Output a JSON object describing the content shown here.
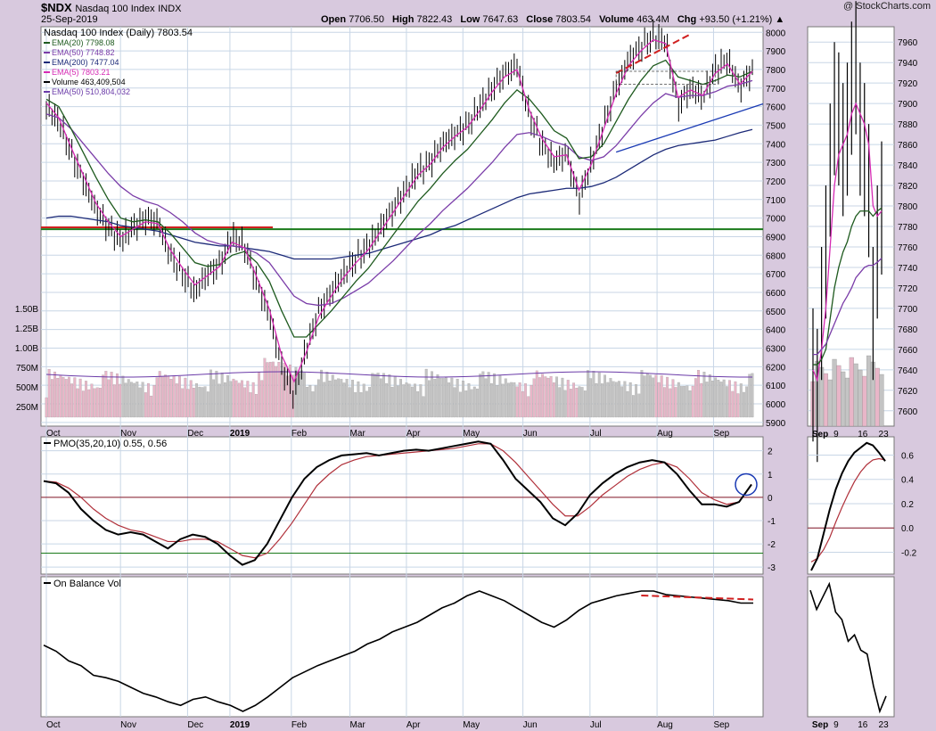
{
  "header": {
    "symbol": "$NDX",
    "name": "Nasdaq 100 Index",
    "exchange": "INDX",
    "date": "25-Sep-2019",
    "open_label": "Open",
    "open": "7706.50",
    "high_label": "High",
    "high": "7822.43",
    "low_label": "Low",
    "low": "7647.63",
    "close_label": "Close",
    "close": "7803.54",
    "volume_label": "Volume",
    "volume": "463.4M",
    "chg_label": "Chg",
    "chg": "+93.50 (+1.21%)",
    "watermark": "@ StockCharts.com"
  },
  "colors": {
    "background": "#d8c9de",
    "plot": "#ffffff",
    "grid": "#c8d6e6",
    "price": "#000000",
    "ema20": "#1e5a1e",
    "ema50": "#7a3ca8",
    "ema200": "#1c2a78",
    "ema5": "#d62ab4",
    "volume_bar": "#c4c4c4",
    "volume_bar_alt": "#e8b6c8",
    "volume_ema": "#6a3aa8",
    "support_red": "#d02020",
    "support_green": "#1a7a1a",
    "trend_blue": "#1a3ab4",
    "pmo_signal": "#b0303a"
  },
  "chart_data": [
    {
      "type": "line",
      "title": "Nasdaq 100 Index (Daily) 7803.54",
      "legend_placement": "top-left",
      "legend": [
        {
          "label": "EMA(20) 7798.08",
          "color_key": "ema20"
        },
        {
          "label": "EMA(50) 7748.82",
          "color_key": "ema50"
        },
        {
          "label": "EMA(200) 7477.04",
          "color_key": "ema200"
        },
        {
          "label": "EMA(5) 7803.21",
          "color_key": "ema5"
        },
        {
          "label": "Volume 463,409,504",
          "color_key": "price"
        },
        {
          "label": "EMA(50) 510,804,032",
          "color_key": "volume_ema"
        }
      ],
      "x_ticks": [
        "Oct",
        "Nov",
        "Dec",
        "2019",
        "Feb",
        "Mar",
        "Apr",
        "May",
        "Jun",
        "Jul",
        "Aug",
        "Sep"
      ],
      "y_ticks": [
        5900,
        6000,
        6100,
        6200,
        6300,
        6400,
        6500,
        6600,
        6700,
        6800,
        6900,
        7000,
        7100,
        7200,
        7300,
        7400,
        7500,
        7600,
        7700,
        7800,
        7900,
        8000
      ],
      "y_range": [
        5880,
        8030
      ],
      "volume_ticks": [
        "250M",
        "500M",
        "750M",
        "1.00B",
        "1.25B",
        "1.50B"
      ],
      "grid": true,
      "series": [
        {
          "name": "Close",
          "color_key": "price",
          "values": [
            7600,
            7520,
            7350,
            7200,
            7050,
            6950,
            6880,
            6950,
            7000,
            6980,
            6800,
            6700,
            6600,
            6700,
            6750,
            6900,
            6850,
            6650,
            6480,
            6200,
            6050,
            6300,
            6500,
            6600,
            6700,
            6780,
            6850,
            6950,
            7050,
            7150,
            7250,
            7300,
            7400,
            7450,
            7500,
            7600,
            7700,
            7780,
            7820,
            7550,
            7400,
            7300,
            7350,
            7100,
            7300,
            7500,
            7700,
            7850,
            7920,
            7980,
            7950,
            7600,
            7700,
            7650,
            7800,
            7850,
            7700,
            7800
          ]
        },
        {
          "name": "EMA(5)",
          "color_key": "ema5",
          "values": [
            7620,
            7540,
            7380,
            7230,
            7080,
            6980,
            6900,
            6940,
            6980,
            6970,
            6830,
            6730,
            6640,
            6690,
            6740,
            6870,
            6840,
            6680,
            6510,
            6260,
            6120,
            6280,
            6470,
            6580,
            6680,
            6760,
            6830,
            6930,
            7030,
            7130,
            7230,
            7290,
            7380,
            7440,
            7490,
            7580,
            7680,
            7760,
            7800,
            7580,
            7430,
            7330,
            7340,
            7150,
            7290,
            7480,
            7670,
            7820,
            7900,
            7960,
            7940,
            7650,
            7690,
            7660,
            7780,
            7830,
            7720,
            7790
          ]
        },
        {
          "name": "EMA(20)",
          "color_key": "ema20",
          "values": [
            7640,
            7600,
            7480,
            7350,
            7220,
            7100,
            7000,
            6980,
            6990,
            6980,
            6920,
            6840,
            6760,
            6740,
            6750,
            6800,
            6820,
            6760,
            6660,
            6500,
            6360,
            6360,
            6430,
            6500,
            6580,
            6660,
            6730,
            6820,
            6910,
            7000,
            7090,
            7160,
            7240,
            7310,
            7370,
            7450,
            7530,
            7620,
            7690,
            7640,
            7560,
            7470,
            7430,
            7320,
            7330,
            7400,
            7520,
            7640,
            7740,
            7820,
            7850,
            7760,
            7740,
            7720,
            7740,
            7770,
            7760,
            7790
          ]
        },
        {
          "name": "EMA(50)",
          "color_key": "ema50",
          "values": [
            7560,
            7540,
            7480,
            7400,
            7320,
            7240,
            7170,
            7120,
            7090,
            7070,
            7030,
            6980,
            6920,
            6880,
            6860,
            6850,
            6840,
            6810,
            6760,
            6670,
            6580,
            6540,
            6530,
            6540,
            6570,
            6610,
            6650,
            6710,
            6770,
            6840,
            6910,
            6970,
            7040,
            7100,
            7160,
            7230,
            7300,
            7380,
            7450,
            7460,
            7440,
            7410,
            7390,
            7330,
            7310,
            7330,
            7390,
            7470,
            7550,
            7620,
            7670,
            7650,
            7660,
            7660,
            7680,
            7710,
            7720,
            7740
          ]
        },
        {
          "name": "EMA(200)",
          "color_key": "ema200",
          "values": [
            7000,
            7010,
            7010,
            7000,
            6990,
            6980,
            6960,
            6950,
            6940,
            6930,
            6910,
            6890,
            6870,
            6860,
            6850,
            6850,
            6840,
            6830,
            6820,
            6800,
            6780,
            6780,
            6780,
            6780,
            6790,
            6800,
            6810,
            6830,
            6850,
            6870,
            6890,
            6910,
            6940,
            6960,
            6990,
            7020,
            7050,
            7080,
            7110,
            7130,
            7140,
            7150,
            7160,
            7160,
            7170,
            7190,
            7220,
            7260,
            7300,
            7340,
            7370,
            7390,
            7400,
            7410,
            7420,
            7440,
            7460,
            7477
          ]
        }
      ]
    },
    {
      "type": "bar",
      "title": "",
      "y_ticks": [
        7600,
        7620,
        7640,
        7660,
        7680,
        7700,
        7720,
        7740,
        7760,
        7780,
        7800,
        7820,
        7840,
        7860,
        7880,
        7900,
        7920,
        7940,
        7960
      ],
      "y_range": [
        7585,
        7975
      ],
      "x_ticks": [
        "Sep",
        "9",
        "16",
        "23"
      ],
      "series": [
        {
          "name": "Close",
          "color_key": "price",
          "values": [
            7640,
            7620,
            7700,
            7760,
            7840,
            7900,
            7890,
            7860,
            7880,
            7920,
            7940,
            7880,
            7860,
            7820,
            7700,
            7760,
            7803
          ]
        },
        {
          "name": "EMA(5)",
          "color_key": "ema5",
          "values": [
            7640,
            7630,
            7660,
            7700,
            7760,
            7820,
            7850,
            7860,
            7870,
            7890,
            7900,
            7890,
            7880,
            7860,
            7800,
            7790,
            7795
          ]
        },
        {
          "name": "EMA(20)",
          "color_key": "ema20",
          "values": [
            7645,
            7645,
            7650,
            7660,
            7690,
            7720,
            7740,
            7755,
            7765,
            7780,
            7790,
            7795,
            7795,
            7795,
            7790,
            7795,
            7798
          ]
        },
        {
          "name": "EMA(50)",
          "color_key": "ema50",
          "values": [
            7655,
            7655,
            7660,
            7665,
            7675,
            7685,
            7695,
            7705,
            7712,
            7720,
            7730,
            7735,
            7740,
            7742,
            7742,
            7745,
            7749
          ]
        }
      ]
    },
    {
      "type": "line",
      "title": "PMO(35,20,10) 0.55, 0.56",
      "y_ticks": [
        -3,
        -2,
        -1,
        0,
        1,
        2
      ],
      "y_range": [
        -3.3,
        2.6
      ],
      "series": [
        {
          "name": "PMO",
          "color_key": "price",
          "values": [
            0.7,
            0.6,
            0.2,
            -0.5,
            -1.0,
            -1.4,
            -1.6,
            -1.5,
            -1.6,
            -1.9,
            -2.2,
            -1.8,
            -1.6,
            -1.7,
            -2.0,
            -2.5,
            -2.9,
            -2.7,
            -2.0,
            -1.0,
            0.0,
            0.8,
            1.3,
            1.6,
            1.8,
            1.85,
            1.9,
            1.8,
            1.9,
            2.0,
            2.05,
            2.0,
            2.1,
            2.2,
            2.3,
            2.4,
            2.3,
            1.6,
            0.8,
            0.3,
            -0.2,
            -0.9,
            -1.2,
            -0.7,
            0.1,
            0.6,
            1.0,
            1.3,
            1.5,
            1.6,
            1.5,
            1.0,
            0.3,
            -0.3,
            -0.3,
            -0.4,
            -0.2,
            0.55
          ]
        },
        {
          "name": "Signal",
          "color_key": "pmo_signal",
          "values": [
            0.7,
            0.65,
            0.4,
            0.0,
            -0.5,
            -0.9,
            -1.2,
            -1.4,
            -1.5,
            -1.7,
            -1.9,
            -1.9,
            -1.8,
            -1.8,
            -1.9,
            -2.2,
            -2.5,
            -2.6,
            -2.4,
            -1.8,
            -1.1,
            -0.3,
            0.5,
            1.0,
            1.4,
            1.6,
            1.75,
            1.8,
            1.85,
            1.9,
            1.95,
            2.0,
            2.05,
            2.1,
            2.2,
            2.3,
            2.3,
            2.0,
            1.5,
            0.9,
            0.3,
            -0.3,
            -0.8,
            -0.8,
            -0.4,
            0.1,
            0.5,
            0.9,
            1.2,
            1.4,
            1.5,
            1.3,
            0.8,
            0.2,
            -0.1,
            -0.3,
            -0.2,
            0.56
          ]
        }
      ]
    },
    {
      "type": "line",
      "title": "",
      "y_ticks": [
        0.6,
        0.4,
        0.2,
        0.0,
        -0.2
      ],
      "y_range": [
        -0.38,
        0.75
      ],
      "series": [
        {
          "name": "PMO",
          "color_key": "price",
          "values": [
            -0.35,
            -0.25,
            -0.05,
            0.15,
            0.32,
            0.45,
            0.55,
            0.62,
            0.66,
            0.7,
            0.68,
            0.62,
            0.55
          ]
        },
        {
          "name": "Signal",
          "color_key": "pmo_signal",
          "values": [
            -0.28,
            -0.25,
            -0.18,
            -0.08,
            0.05,
            0.17,
            0.28,
            0.38,
            0.46,
            0.52,
            0.56,
            0.57,
            0.56
          ]
        }
      ]
    },
    {
      "type": "line",
      "title": "On Balance Vol",
      "series": [
        {
          "name": "OBV",
          "color_key": "price",
          "values": [
            0.55,
            0.5,
            0.42,
            0.38,
            0.3,
            0.28,
            0.25,
            0.2,
            0.15,
            0.12,
            0.08,
            0.05,
            0.1,
            0.12,
            0.08,
            0.05,
            0.0,
            0.05,
            0.12,
            0.2,
            0.28,
            0.33,
            0.38,
            0.42,
            0.46,
            0.5,
            0.56,
            0.6,
            0.66,
            0.7,
            0.74,
            0.8,
            0.86,
            0.9,
            0.96,
            1.0,
            0.96,
            0.92,
            0.86,
            0.8,
            0.74,
            0.7,
            0.76,
            0.84,
            0.9,
            0.93,
            0.96,
            0.98,
            1.0,
            1.0,
            0.97,
            0.96,
            0.95,
            0.94,
            0.93,
            0.92,
            0.9,
            0.9
          ]
        }
      ]
    },
    {
      "type": "line",
      "title": "",
      "series": [
        {
          "name": "OBV",
          "color_key": "price",
          "values": [
            0.95,
            0.8,
            0.9,
            1.0,
            0.78,
            0.72,
            0.55,
            0.6,
            0.48,
            0.45,
            0.2,
            0.0,
            0.12
          ]
        }
      ]
    }
  ]
}
